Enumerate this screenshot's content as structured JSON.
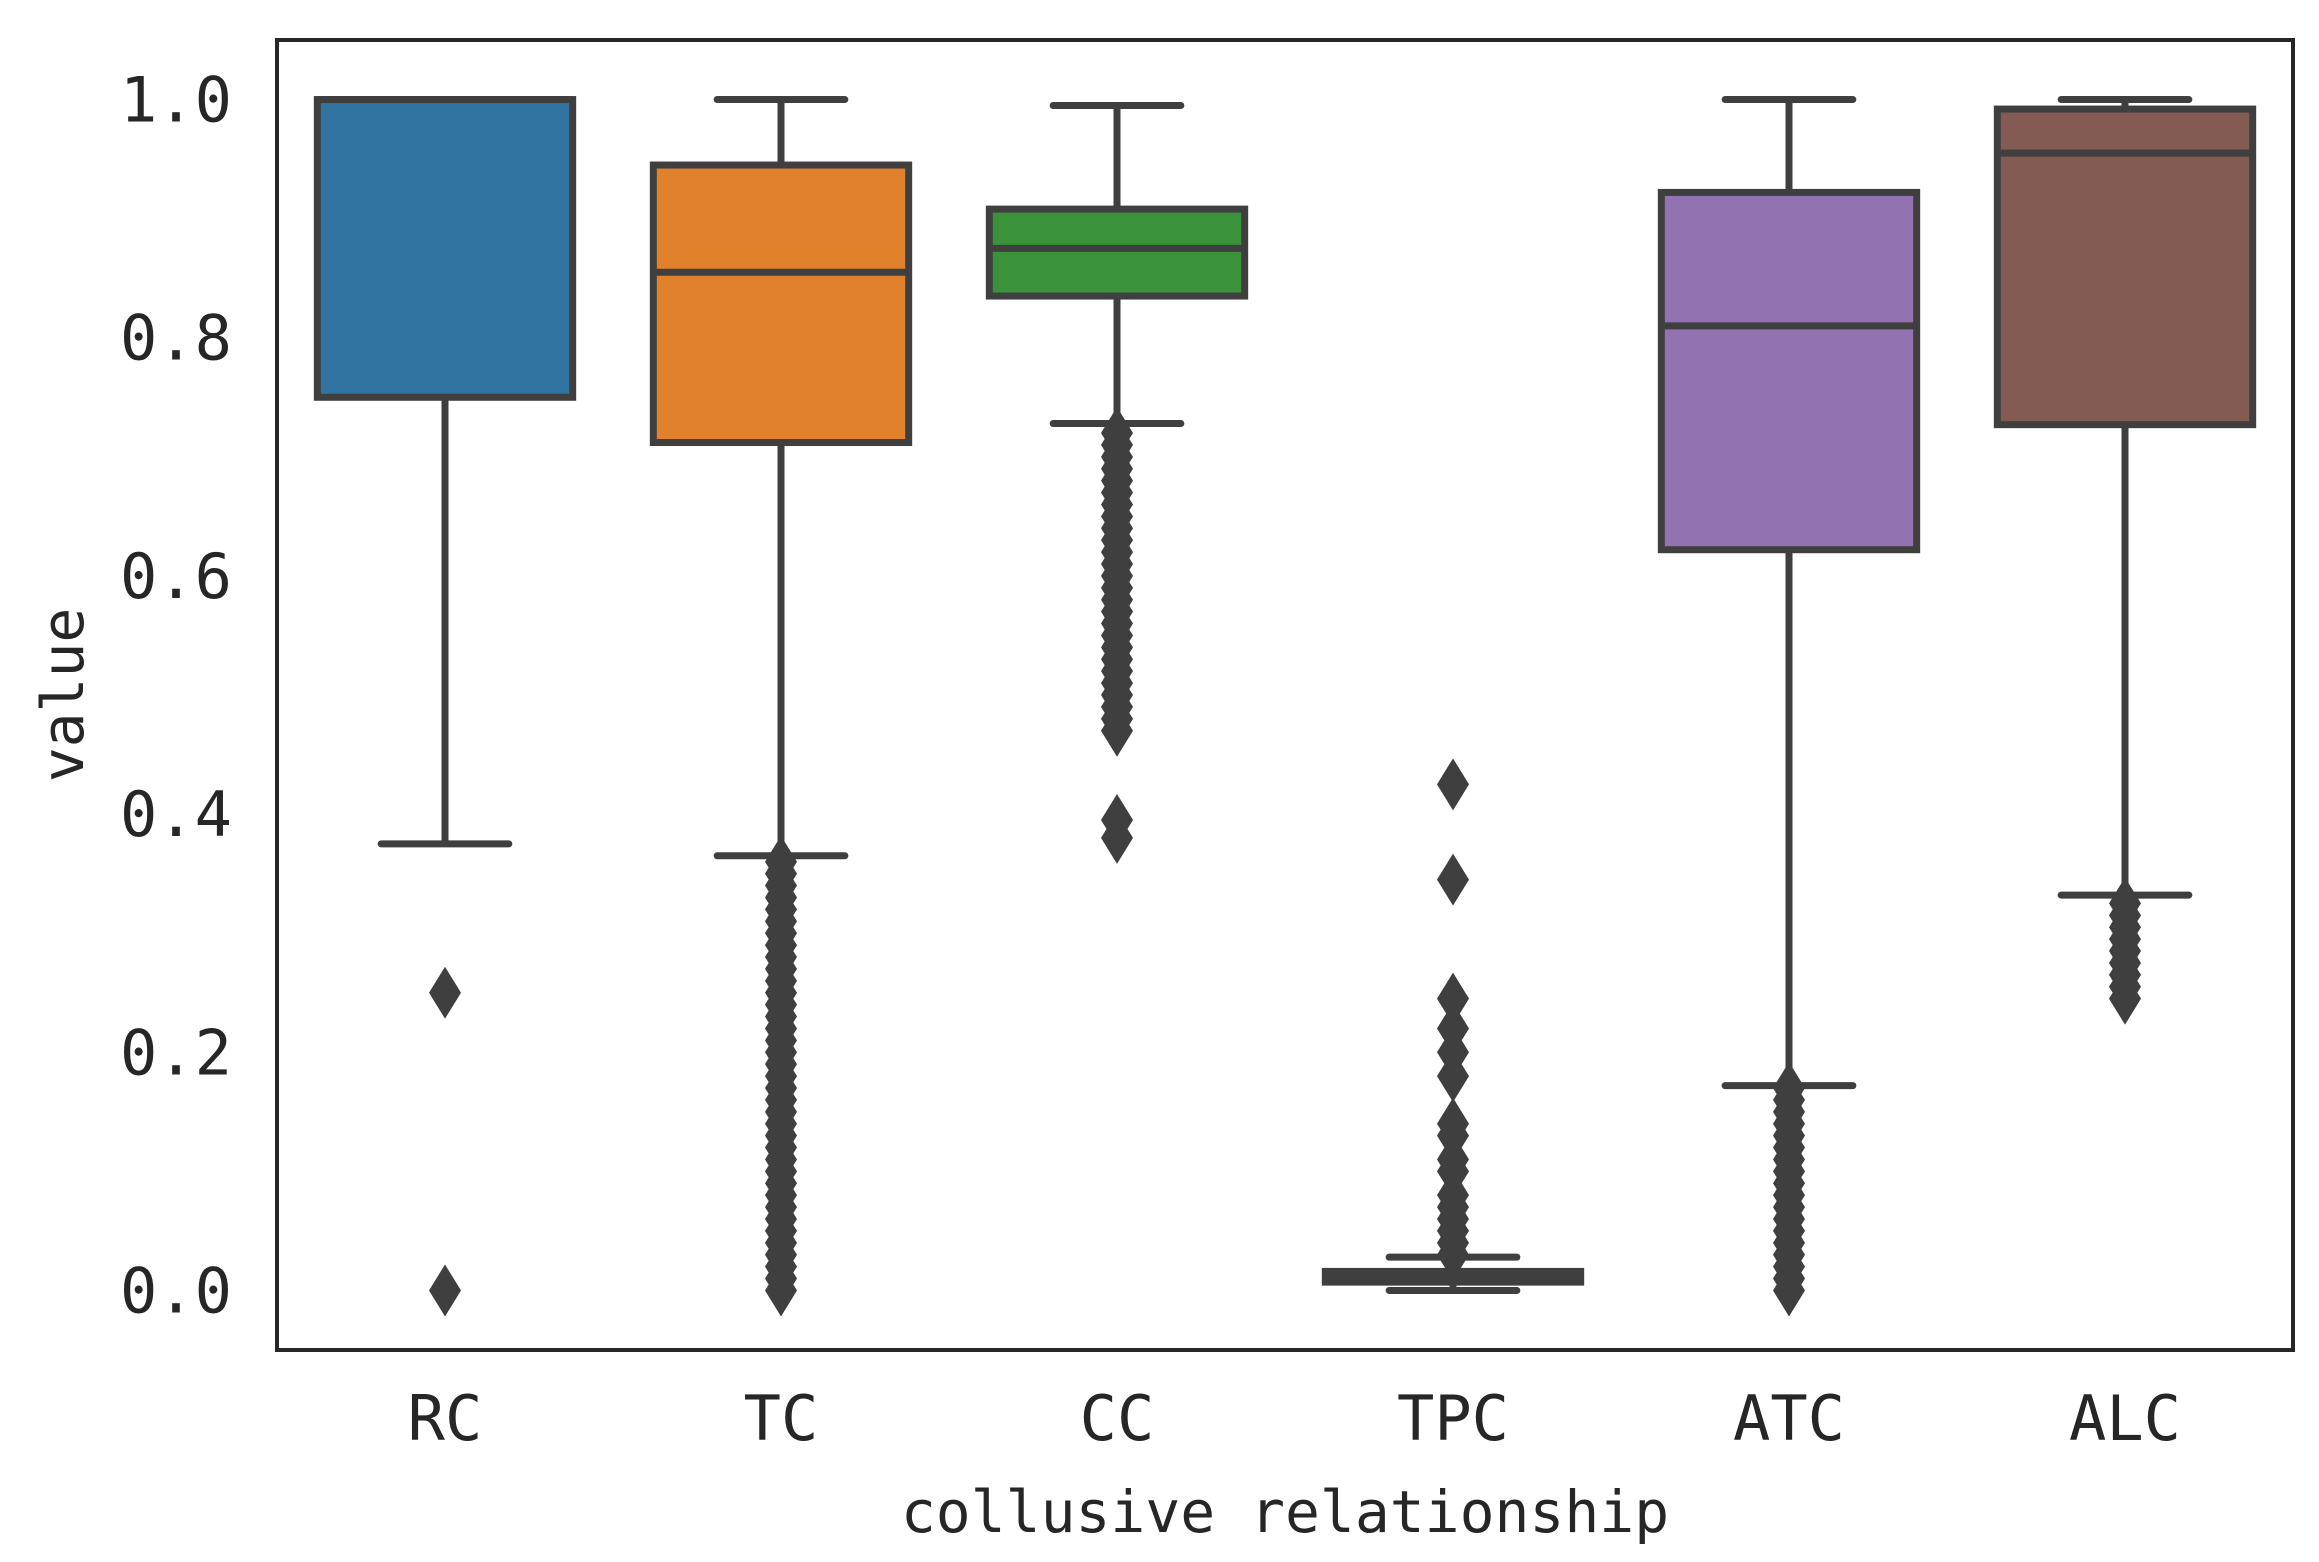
{
  "chart_data": {
    "type": "box",
    "title": "",
    "xlabel": "collusive relationship",
    "ylabel": "value",
    "ylim": [
      -0.05,
      1.05
    ],
    "yticks": [
      0.0,
      0.2,
      0.4,
      0.6,
      0.8,
      1.0
    ],
    "ytick_labels": [
      "0.0",
      "0.2",
      "0.4",
      "0.6",
      "0.8",
      "1.0"
    ],
    "grid": false,
    "legend": "none",
    "categories": [
      "RC",
      "TC",
      "CC",
      "TPC",
      "ATC",
      "ALC"
    ],
    "boxes": [
      {
        "category": "RC",
        "whisker_low": 0.375,
        "q1": 0.75,
        "median": 1.0,
        "q3": 1.0,
        "whisker_high": 1.0,
        "color": "#3274a1",
        "outliers": [
          0.25,
          0.0
        ]
      },
      {
        "category": "TC",
        "whisker_low": 0.365,
        "q1": 0.712,
        "median": 0.855,
        "q3": 0.945,
        "whisker_high": 1.0,
        "color": "#e1812c",
        "outliers": [
          0.0,
          0.01,
          0.02,
          0.03,
          0.04,
          0.05,
          0.06,
          0.07,
          0.08,
          0.09,
          0.1,
          0.11,
          0.12,
          0.13,
          0.14,
          0.15,
          0.16,
          0.17,
          0.18,
          0.19,
          0.2,
          0.21,
          0.22,
          0.23,
          0.24,
          0.25,
          0.26,
          0.27,
          0.28,
          0.29,
          0.3,
          0.31,
          0.32,
          0.33,
          0.34,
          0.35,
          0.36
        ]
      },
      {
        "category": "CC",
        "whisker_low": 0.728,
        "q1": 0.835,
        "median": 0.875,
        "q3": 0.908,
        "whisker_high": 0.995,
        "color": "#3a923a",
        "outliers": [
          0.38,
          0.395,
          0.47,
          0.48,
          0.49,
          0.5,
          0.51,
          0.52,
          0.53,
          0.54,
          0.55,
          0.56,
          0.57,
          0.58,
          0.59,
          0.6,
          0.61,
          0.62,
          0.63,
          0.64,
          0.65,
          0.66,
          0.67,
          0.68,
          0.69,
          0.7,
          0.71,
          0.72
        ]
      },
      {
        "category": "TPC",
        "whisker_low": 0.0,
        "q1": 0.007,
        "median": 0.012,
        "q3": 0.016,
        "whisker_high": 0.028,
        "color": "#c03d3e",
        "outliers": [
          0.03,
          0.04,
          0.05,
          0.06,
          0.07,
          0.08,
          0.1,
          0.11,
          0.13,
          0.14,
          0.18,
          0.2,
          0.22,
          0.245,
          0.345,
          0.425
        ]
      },
      {
        "category": "ATC",
        "whisker_low": 0.172,
        "q1": 0.622,
        "median": 0.81,
        "q3": 0.922,
        "whisker_high": 1.0,
        "color": "#9372b2",
        "outliers": [
          0.0,
          0.01,
          0.02,
          0.03,
          0.04,
          0.05,
          0.06,
          0.07,
          0.08,
          0.09,
          0.1,
          0.11,
          0.12,
          0.13,
          0.14,
          0.15,
          0.16,
          0.17
        ]
      },
      {
        "category": "ALC",
        "whisker_low": 0.332,
        "q1": 0.727,
        "median": 0.955,
        "q3": 0.992,
        "whisker_high": 1.0,
        "color": "#845b53",
        "outliers": [
          0.245,
          0.255,
          0.265,
          0.275,
          0.285,
          0.295,
          0.305,
          0.315,
          0.325
        ]
      }
    ]
  }
}
